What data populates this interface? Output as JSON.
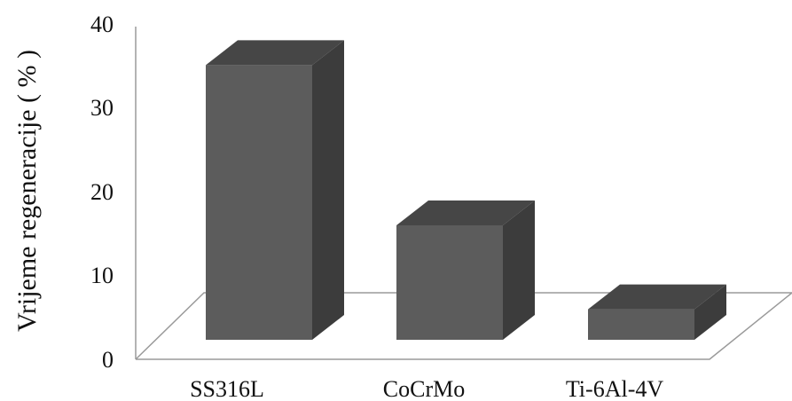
{
  "chart_data": {
    "type": "bar",
    "style": "3d",
    "categories": [
      "SS316L",
      "CoCrMo",
      "Ti-6Al-4V"
    ],
    "values": [
      36,
      15,
      4
    ],
    "ylabel": "Vrijeme regeneracije ( % )",
    "xlabel": "",
    "ylim": [
      0,
      40
    ],
    "yticks": [
      "0",
      "10",
      "20",
      "30",
      "40"
    ],
    "grid": false,
    "legend": "none",
    "colors": {
      "bar_front": "#5c5c5c",
      "bar_side": "#3c3c3c",
      "bar_top": "#464646",
      "floor_line": "#9a9a9a"
    }
  }
}
